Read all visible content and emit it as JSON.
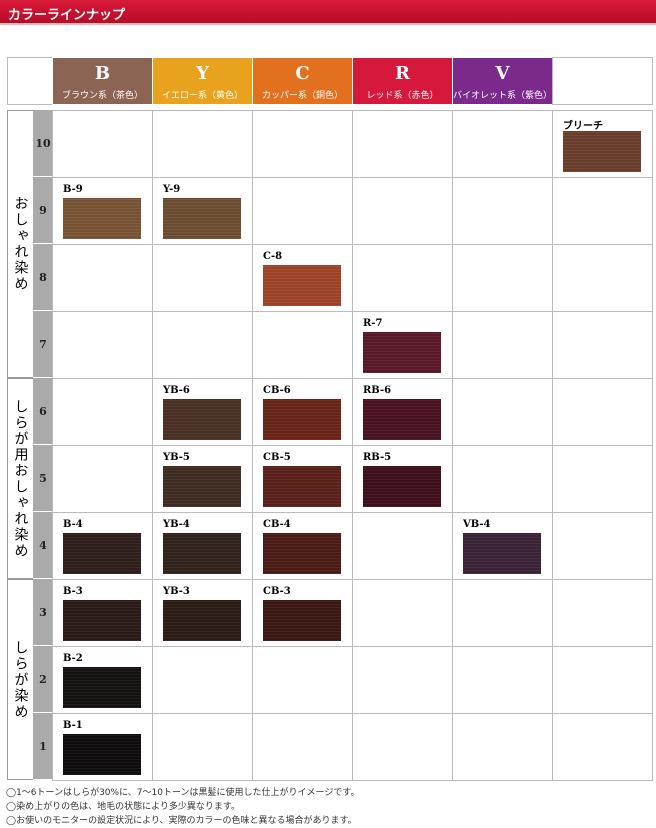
{
  "header": {
    "title": "カラーラインナップ"
  },
  "columns": [
    {
      "letter": "B",
      "name": "ブラウン系（茶色）",
      "color": "#8c6453"
    },
    {
      "letter": "Y",
      "name": "イエロー系（黄色）",
      "color": "#e9a21e"
    },
    {
      "letter": "C",
      "name": "カッパー系（銅色）",
      "color": "#e2701f"
    },
    {
      "letter": "R",
      "name": "レッド系（赤色）",
      "color": "#d6183c"
    },
    {
      "letter": "V",
      "name": "バイオレット系（紫色）",
      "color": "#7b2a8c"
    }
  ],
  "groups": [
    {
      "label": "おしゃれ染め",
      "rows": [
        {
          "level": "10",
          "cells": [
            null,
            null,
            null,
            null,
            null,
            {
              "label": "ブリーチ",
              "color": "#6e3f2c"
            }
          ]
        },
        {
          "level": "9",
          "cells": [
            {
              "label": "B-9",
              "color": "#7c5638"
            },
            {
              "label": "Y-9",
              "color": "#6f5032"
            },
            null,
            null,
            null,
            null
          ]
        },
        {
          "level": "8",
          "cells": [
            null,
            null,
            {
              "label": "C-8",
              "color": "#a2462a"
            },
            null,
            null,
            null
          ]
        },
        {
          "level": "7",
          "cells": [
            null,
            null,
            null,
            {
              "label": "R-7",
              "color": "#5c1a2a"
            },
            null,
            null
          ]
        }
      ]
    },
    {
      "label": "しらが用おしゃれ染め",
      "rows": [
        {
          "level": "6",
          "cells": [
            null,
            {
              "label": "YB-6",
              "color": "#4c3226"
            },
            {
              "label": "CB-6",
              "color": "#6c261a"
            },
            {
              "label": "RB-6",
              "color": "#4c1222"
            },
            null,
            null
          ]
        },
        {
          "level": "5",
          "cells": [
            null,
            {
              "label": "YB-5",
              "color": "#402c22"
            },
            {
              "label": "CB-5",
              "color": "#5c2219"
            },
            {
              "label": "RB-5",
              "color": "#40101c"
            },
            null,
            null
          ]
        },
        {
          "level": "4",
          "cells": [
            {
              "label": "B-4",
              "color": "#2f201e"
            },
            {
              "label": "YB-4",
              "color": "#32241c"
            },
            {
              "label": "CB-4",
              "color": "#4c1c16"
            },
            null,
            {
              "label": "VB-4",
              "color": "#3c2436"
            },
            null
          ]
        }
      ]
    },
    {
      "label": "しらが染め",
      "rows": [
        {
          "level": "3",
          "cells": [
            {
              "label": "B-3",
              "color": "#2b1a18"
            },
            {
              "label": "YB-3",
              "color": "#2c1c16"
            },
            {
              "label": "CB-3",
              "color": "#3c1814"
            },
            null,
            null,
            null
          ]
        },
        {
          "level": "2",
          "cells": [
            {
              "label": "B-2",
              "color": "#161212"
            },
            null,
            null,
            null,
            null,
            null
          ]
        },
        {
          "level": "1",
          "cells": [
            {
              "label": "B-1",
              "color": "#0f0d0d"
            },
            null,
            null,
            null,
            null,
            null
          ]
        }
      ]
    }
  ],
  "notes": [
    "◯1～6トーンはしらが30%に、7～10トーンは黒髪に使用した仕上がりイメージです。",
    "◯染め上がりの色は、地毛の状態により多少異なります。",
    "◯お使いのモニターの設定状況により、実際のカラーの色味と異なる場合があります。"
  ]
}
